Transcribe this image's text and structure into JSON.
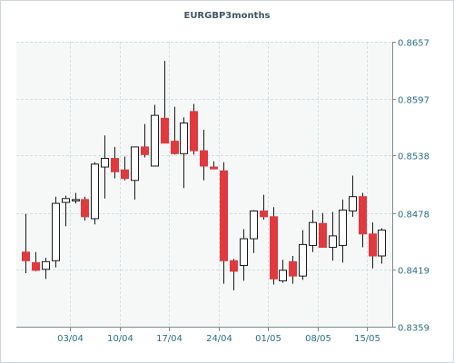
{
  "chart_data": {
    "type": "candlestick",
    "title": "EURGBP3months",
    "ylim": [
      0.8359,
      0.8657
    ],
    "y_ticks": [
      "0.8657",
      "0.8597",
      "0.8538",
      "0.8478",
      "0.8419",
      "0.8359"
    ],
    "x_tick_labels": [
      "03/04",
      "10/04",
      "17/04",
      "24/04",
      "01/05",
      "08/05",
      "15/05"
    ],
    "x_tick_positions": [
      4.5,
      9.5,
      14.5,
      19.5,
      24.5,
      29.5,
      34.5
    ],
    "candles": [
      {
        "open": 0.8437,
        "high": 0.8477,
        "low": 0.8415,
        "close": 0.8428
      },
      {
        "open": 0.8426,
        "high": 0.8437,
        "low": 0.8417,
        "close": 0.8418
      },
      {
        "open": 0.8419,
        "high": 0.8431,
        "low": 0.8409,
        "close": 0.8427
      },
      {
        "open": 0.8428,
        "high": 0.8495,
        "low": 0.8421,
        "close": 0.8488
      },
      {
        "open": 0.8489,
        "high": 0.8496,
        "low": 0.8464,
        "close": 0.8493
      },
      {
        "open": 0.8492,
        "high": 0.8499,
        "low": 0.8488,
        "close": 0.8492
      },
      {
        "open": 0.8492,
        "high": 0.8495,
        "low": 0.847,
        "close": 0.8474
      },
      {
        "open": 0.8472,
        "high": 0.8531,
        "low": 0.8466,
        "close": 0.8529
      },
      {
        "open": 0.8526,
        "high": 0.8559,
        "low": 0.8493,
        "close": 0.8535
      },
      {
        "open": 0.8535,
        "high": 0.8547,
        "low": 0.8514,
        "close": 0.8521
      },
      {
        "open": 0.8523,
        "high": 0.8537,
        "low": 0.8512,
        "close": 0.8514
      },
      {
        "open": 0.8512,
        "high": 0.8546,
        "low": 0.8492,
        "close": 0.8547
      },
      {
        "open": 0.8547,
        "high": 0.8571,
        "low": 0.8536,
        "close": 0.8539
      },
      {
        "open": 0.8527,
        "high": 0.8591,
        "low": 0.8528,
        "close": 0.858
      },
      {
        "open": 0.8577,
        "high": 0.8637,
        "low": 0.8551,
        "close": 0.8551
      },
      {
        "open": 0.8553,
        "high": 0.8589,
        "low": 0.8539,
        "close": 0.854
      },
      {
        "open": 0.854,
        "high": 0.8578,
        "low": 0.8504,
        "close": 0.8572
      },
      {
        "open": 0.8584,
        "high": 0.8592,
        "low": 0.8539,
        "close": 0.8543
      },
      {
        "open": 0.8543,
        "high": 0.8565,
        "low": 0.8512,
        "close": 0.8527
      },
      {
        "open": 0.8526,
        "high": 0.8532,
        "low": 0.8526,
        "close": 0.8524
      },
      {
        "open": 0.8522,
        "high": 0.8531,
        "low": 0.8404,
        "close": 0.8428
      },
      {
        "open": 0.8428,
        "high": 0.843,
        "low": 0.8397,
        "close": 0.8417
      },
      {
        "open": 0.8423,
        "high": 0.8461,
        "low": 0.8407,
        "close": 0.8451
      },
      {
        "open": 0.8451,
        "high": 0.8481,
        "low": 0.8436,
        "close": 0.848
      },
      {
        "open": 0.848,
        "high": 0.8497,
        "low": 0.8471,
        "close": 0.8474
      },
      {
        "open": 0.8474,
        "high": 0.8484,
        "low": 0.8403,
        "close": 0.8409
      },
      {
        "open": 0.8407,
        "high": 0.8429,
        "low": 0.8405,
        "close": 0.8418
      },
      {
        "open": 0.8427,
        "high": 0.8433,
        "low": 0.8404,
        "close": 0.8412
      },
      {
        "open": 0.8412,
        "high": 0.846,
        "low": 0.8408,
        "close": 0.8445
      },
      {
        "open": 0.8444,
        "high": 0.8481,
        "low": 0.8437,
        "close": 0.8468
      },
      {
        "open": 0.8467,
        "high": 0.8478,
        "low": 0.8443,
        "close": 0.8442
      },
      {
        "open": 0.8442,
        "high": 0.8479,
        "low": 0.8428,
        "close": 0.8454
      },
      {
        "open": 0.8444,
        "high": 0.8492,
        "low": 0.8426,
        "close": 0.8481
      },
      {
        "open": 0.848,
        "high": 0.8517,
        "low": 0.8474,
        "close": 0.8495
      },
      {
        "open": 0.8495,
        "high": 0.8499,
        "low": 0.8442,
        "close": 0.8456
      },
      {
        "open": 0.8456,
        "high": 0.8468,
        "low": 0.842,
        "close": 0.8433
      },
      {
        "open": 0.8433,
        "high": 0.8462,
        "low": 0.8425,
        "close": 0.846
      }
    ],
    "grid": true,
    "up_color": "#ffffff",
    "down_color": "#e03a3e",
    "axis_label_color": "#2a6f88"
  }
}
